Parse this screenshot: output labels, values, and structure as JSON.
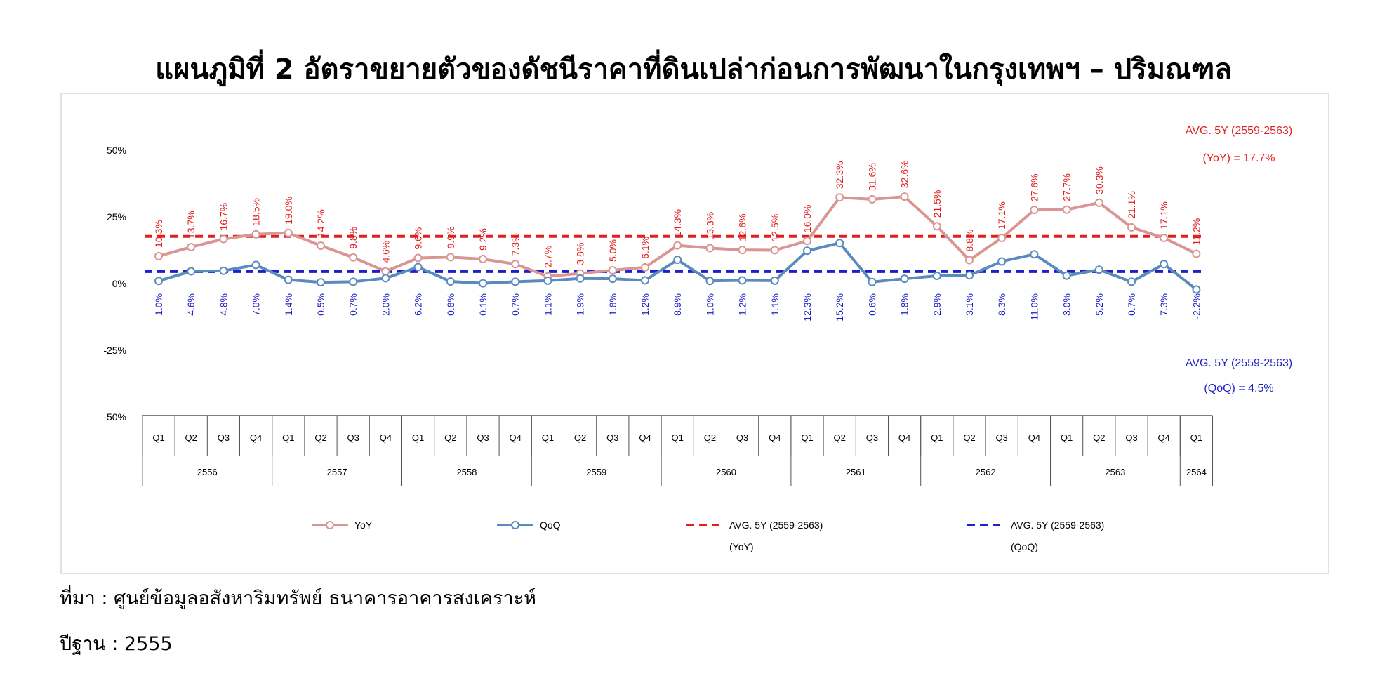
{
  "title": "แผนภูมิที่ 2 อัตราขยายตัวของดัชนีราคาที่ดินเปล่าก่อนการพัฒนาในกรุงเทพฯ – ปริมณฑล",
  "source": "ที่มา : ศูนย์ข้อมูลอสังหาริมทรัพย์ ธนาคารอาคารสงเคราะห์",
  "base_year": "ปีฐาน : 2555",
  "chart_data": {
    "type": "line",
    "quarters": [
      "Q1",
      "Q2",
      "Q3",
      "Q4",
      "Q1",
      "Q2",
      "Q3",
      "Q4",
      "Q1",
      "Q2",
      "Q3",
      "Q4",
      "Q1",
      "Q2",
      "Q3",
      "Q4",
      "Q1",
      "Q2",
      "Q3",
      "Q4",
      "Q1",
      "Q2",
      "Q3",
      "Q4",
      "Q1",
      "Q2",
      "Q3",
      "Q4",
      "Q1",
      "Q2",
      "Q3",
      "Q4",
      "Q1"
    ],
    "years": [
      {
        "label": "2556",
        "quarters": 4
      },
      {
        "label": "2557",
        "quarters": 4
      },
      {
        "label": "2558",
        "quarters": 4
      },
      {
        "label": "2559",
        "quarters": 4
      },
      {
        "label": "2560",
        "quarters": 4
      },
      {
        "label": "2561",
        "quarters": 4
      },
      {
        "label": "2562",
        "quarters": 4
      },
      {
        "label": "2563",
        "quarters": 4
      },
      {
        "label": "2564",
        "quarters": 1
      }
    ],
    "y_ticks": [
      "50%",
      "25%",
      "0%",
      "-25%",
      "-50%"
    ],
    "ylim": [
      -50,
      50
    ],
    "series": [
      {
        "name": "YoY",
        "color": "#d99694",
        "values": [
          10.3,
          13.7,
          16.7,
          18.5,
          19.0,
          14.2,
          9.8,
          4.6,
          9.6,
          9.9,
          9.2,
          7.3,
          2.7,
          3.8,
          5.0,
          6.1,
          14.3,
          13.3,
          12.6,
          12.5,
          16.0,
          32.3,
          31.6,
          32.6,
          21.5,
          8.8,
          17.1,
          27.6,
          27.7,
          30.3,
          21.1,
          17.1,
          11.2
        ],
        "labels": [
          "10.3%",
          "13.7%",
          "16.7%",
          "18.5%",
          "19.0%",
          "14.2%",
          "9.8%",
          "4.6%",
          "9.6%",
          "9.9%",
          "9.2%",
          "7.3%",
          "2.7%",
          "3.8%",
          "5.0%",
          "6.1%",
          "14.3%",
          "13.3%",
          "12.6%",
          "12.5%",
          "16.0%",
          "32.3%",
          "31.6%",
          "32.6%",
          "21.5%",
          "8.8%",
          "17.1%",
          "27.6%",
          "27.7%",
          "30.3%",
          "21.1%",
          "17.1%",
          "11.2%"
        ]
      },
      {
        "name": "QoQ",
        "color": "#5b8bbd",
        "values": [
          1.0,
          4.6,
          4.8,
          7.0,
          1.4,
          0.5,
          0.7,
          2.0,
          6.2,
          0.8,
          0.1,
          0.7,
          1.1,
          1.9,
          1.8,
          1.2,
          8.9,
          1.0,
          1.2,
          1.1,
          12.3,
          15.2,
          0.6,
          1.8,
          2.9,
          3.1,
          8.3,
          11.0,
          3.0,
          5.2,
          0.7,
          7.3,
          -2.2
        ],
        "labels": [
          "1.0%",
          "4.6%",
          "4.8%",
          "7.0%",
          "1.4%",
          "0.5%",
          "0.7%",
          "2.0%",
          "6.2%",
          "0.8%",
          "0.1%",
          "0.7%",
          "1.1%",
          "1.9%",
          "1.8%",
          "1.2%",
          "8.9%",
          "1.0%",
          "1.2%",
          "1.1%",
          "12.3%",
          "15.2%",
          "0.6%",
          "1.8%",
          "2.9%",
          "3.1%",
          "8.3%",
          "11.0%",
          "3.0%",
          "5.2%",
          "0.7%",
          "7.3%",
          "-2.2%"
        ]
      }
    ],
    "averages": [
      {
        "name": "AVG. 5Y (2559-2563) (YoY)",
        "value": 17.7,
        "color": "#e02020",
        "annotation_line1": "AVG. 5Y (2559-2563)",
        "annotation_line2": "(YoY) = 17.7%",
        "legend_line1": "AVG. 5Y (2559-2563)",
        "legend_line2": "(YoY)"
      },
      {
        "name": "AVG. 5Y (2559-2563) (QoQ)",
        "value": 4.5,
        "color": "#1f1fc8",
        "annotation_line1": "AVG. 5Y (2559-2563)",
        "annotation_line2": "(QoQ) = 4.5%",
        "legend_line1": "AVG. 5Y (2559-2563)",
        "legend_line2": "(QoQ)"
      }
    ],
    "legend_position": "bottom",
    "grid": false
  }
}
